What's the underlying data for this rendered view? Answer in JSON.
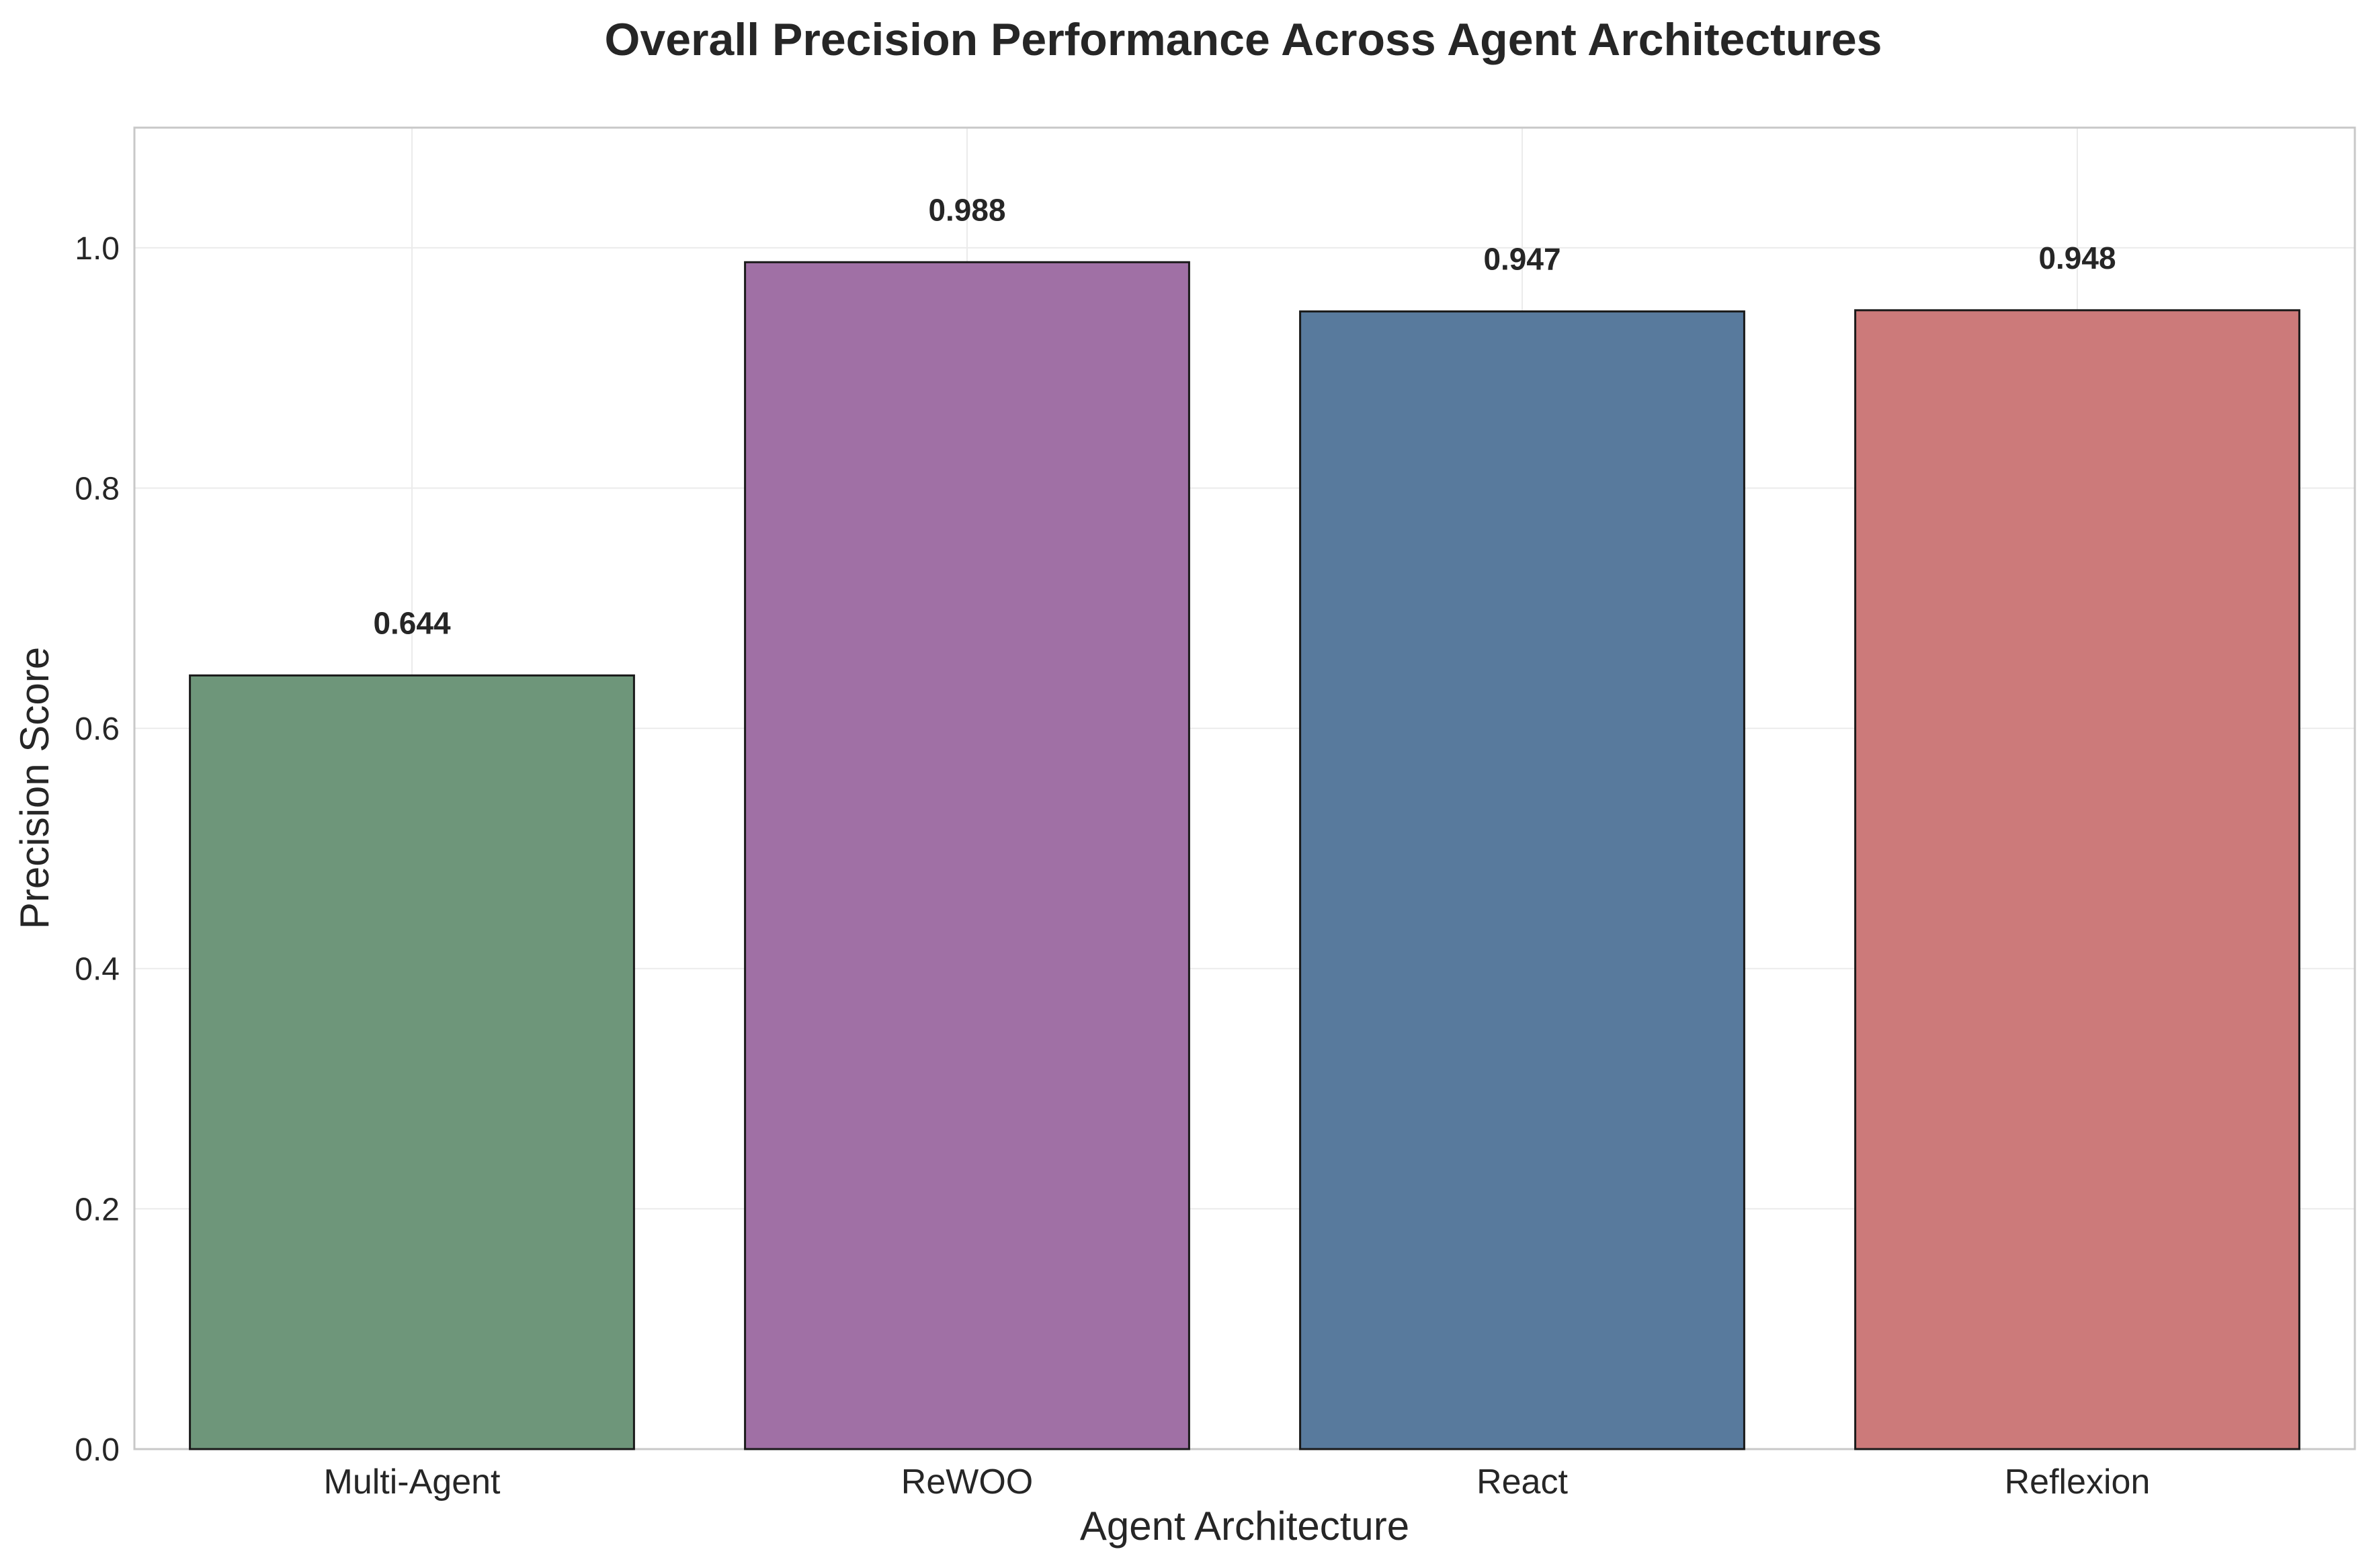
{
  "chart_data": {
    "type": "bar",
    "title": "Overall Precision Performance Across Agent Architectures",
    "xlabel": "Agent Architecture",
    "ylabel": "Precision Score",
    "categories": [
      "Multi-Agent",
      "ReWOO",
      "React",
      "Reflexion"
    ],
    "values": [
      0.644,
      0.988,
      0.947,
      0.948
    ],
    "value_labels": [
      "0.644",
      "0.988",
      "0.947",
      "0.948"
    ],
    "colors": [
      "#6e967a",
      "#a070a5",
      "#587a9d",
      "#cc7a7a"
    ],
    "ylim": [
      0,
      1.1
    ],
    "yticks": [
      0.0,
      0.2,
      0.4,
      0.6,
      0.8,
      1.0
    ],
    "ytick_labels": [
      "0.0",
      "0.2",
      "0.4",
      "0.6",
      "0.8",
      "1.0"
    ],
    "grid": true,
    "legend": "none"
  }
}
